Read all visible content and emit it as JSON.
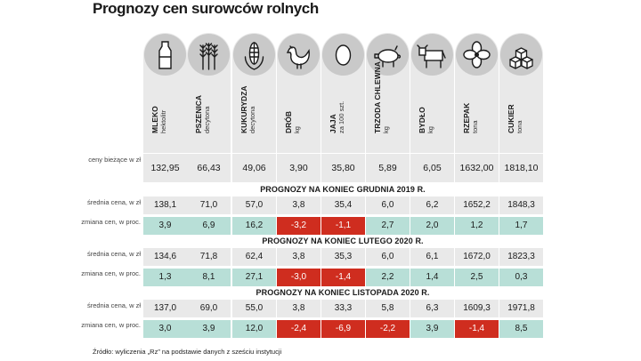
{
  "title": "Prognozy cen surowców rolnych",
  "commodities": [
    {
      "name": "MLEKO",
      "unit": "hektolitr",
      "icon": "milk-bottle-icon"
    },
    {
      "name": "PSZENICA",
      "unit": "decytona",
      "icon": "wheat-icon"
    },
    {
      "name": "KUKURYDZA",
      "unit": "decytona",
      "icon": "corn-icon"
    },
    {
      "name": "DRÓB",
      "unit": "kg",
      "icon": "chicken-icon"
    },
    {
      "name": "JAJA",
      "unit": "za 100 szt.",
      "icon": "egg-icon"
    },
    {
      "name": "TRZODA CHLEWNA",
      "unit": "kg",
      "icon": "pig-icon"
    },
    {
      "name": "BYDŁO",
      "unit": "kg",
      "icon": "cow-icon"
    },
    {
      "name": "RZEPAK",
      "unit": "tona",
      "icon": "rapeseed-flower-icon"
    },
    {
      "name": "CUKIER",
      "unit": "tona",
      "icon": "sugar-cubes-icon"
    }
  ],
  "row_labels": {
    "current": "ceny bieżące w zł",
    "avg": "średnia cena, w zł",
    "change": "zmiana cen, w proc."
  },
  "chart_data": {
    "type": "table",
    "title": "Prognozy cen surowców rolnych",
    "columns": [
      "MLEKO",
      "PSZENICA",
      "KUKURYDZA",
      "DRÓB",
      "JAJA",
      "TRZODA CHLEWNA",
      "BYDŁO",
      "RZEPAK",
      "CUKIER"
    ],
    "current_prices": [
      "132,95",
      "66,43",
      "49,06",
      "3,90",
      "35,80",
      "5,89",
      "6,05",
      "1632,00",
      "1818,10"
    ],
    "forecasts": [
      {
        "title": "PROGNOZY NA KONIEC GRUDNIA 2019 R.",
        "avg": [
          "138,1",
          "71,0",
          "57,0",
          "3,8",
          "35,4",
          "6,0",
          "6,2",
          "1652,2",
          "1848,3"
        ],
        "change": [
          "3,9",
          "6,9",
          "16,2",
          "-3,2",
          "-1,1",
          "2,7",
          "2,0",
          "1,2",
          "1,7"
        ]
      },
      {
        "title": "PROGNOZY NA KONIEC LUTEGO  2020 R.",
        "avg": [
          "134,6",
          "71,8",
          "62,4",
          "3,8",
          "35,3",
          "6,0",
          "6,1",
          "1672,0",
          "1823,3"
        ],
        "change": [
          "1,3",
          "8,1",
          "27,1",
          "-3,0",
          "-1,4",
          "2,2",
          "1,4",
          "2,5",
          "0,3"
        ]
      },
      {
        "title": "PROGNOZY NA KONIEC LISTOPADA 2020 R.",
        "avg": [
          "137,0",
          "69,0",
          "55,0",
          "3,8",
          "33,3",
          "5,8",
          "6,3",
          "1609,3",
          "1971,8"
        ],
        "change": [
          "3,0",
          "3,9",
          "12,0",
          "-2,4",
          "-6,9",
          "-2,2",
          "3,9",
          "-1,4",
          "8,5"
        ]
      }
    ]
  },
  "colors": {
    "positive_fill": "#b8dfd7",
    "negative_fill": "#cf2d1f",
    "neutral_fill": "#e9e9e9"
  },
  "source": "Źródło: wyliczenia „Rz” na podstawie danych z sześciu instytucji"
}
